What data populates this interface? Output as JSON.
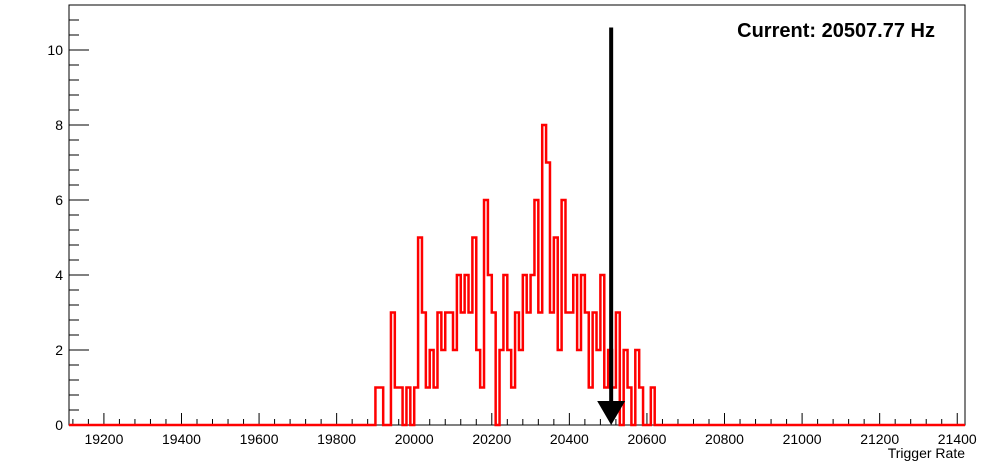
{
  "chart_data": {
    "type": "histogram",
    "title": "",
    "xlabel": "Trigger Rate",
    "ylabel": "",
    "xlim": [
      19110,
      21420
    ],
    "ylim": [
      0,
      11.2
    ],
    "x_ticks": [
      "19200",
      "19400",
      "19600",
      "19800",
      "20000",
      "20200",
      "20400",
      "20600",
      "20800",
      "21000",
      "21200",
      "21400"
    ],
    "y_ticks": [
      "0",
      "2",
      "4",
      "6",
      "8",
      "10"
    ],
    "grid": false,
    "legend": "none",
    "series_color": "#ff0000",
    "annotation": {
      "text": "Current: 20507.77 Hz",
      "arrow_x": 20507.77,
      "arrow_y_top": 10.6,
      "arrow_y_bottom": 0
    },
    "bins": [
      [
        19900,
        1
      ],
      [
        19910,
        1
      ],
      [
        19920,
        0
      ],
      [
        19930,
        0
      ],
      [
        19940,
        3
      ],
      [
        19950,
        1
      ],
      [
        19960,
        1
      ],
      [
        19970,
        0
      ],
      [
        19980,
        1
      ],
      [
        19990,
        0
      ],
      [
        20000,
        1
      ],
      [
        20010,
        5
      ],
      [
        20020,
        3
      ],
      [
        20030,
        1
      ],
      [
        20040,
        2
      ],
      [
        20050,
        1
      ],
      [
        20060,
        3
      ],
      [
        20070,
        2
      ],
      [
        20080,
        3
      ],
      [
        20090,
        3
      ],
      [
        20100,
        2
      ],
      [
        20110,
        4
      ],
      [
        20120,
        3
      ],
      [
        20130,
        4
      ],
      [
        20140,
        3
      ],
      [
        20150,
        5
      ],
      [
        20160,
        2
      ],
      [
        20170,
        1
      ],
      [
        20180,
        6
      ],
      [
        20190,
        4
      ],
      [
        20200,
        3
      ],
      [
        20210,
        0
      ],
      [
        20220,
        2
      ],
      [
        20230,
        4
      ],
      [
        20240,
        2
      ],
      [
        20250,
        1
      ],
      [
        20260,
        3
      ],
      [
        20270,
        2
      ],
      [
        20280,
        4
      ],
      [
        20290,
        3
      ],
      [
        20300,
        4
      ],
      [
        20310,
        6
      ],
      [
        20320,
        3
      ],
      [
        20330,
        8
      ],
      [
        20340,
        7
      ],
      [
        20350,
        3
      ],
      [
        20360,
        5
      ],
      [
        20370,
        2
      ],
      [
        20380,
        6
      ],
      [
        20390,
        3
      ],
      [
        20400,
        3
      ],
      [
        20410,
        4
      ],
      [
        20420,
        2
      ],
      [
        20430,
        4
      ],
      [
        20440,
        3
      ],
      [
        20450,
        1
      ],
      [
        20460,
        3
      ],
      [
        20470,
        2
      ],
      [
        20480,
        4
      ],
      [
        20490,
        1
      ],
      [
        20500,
        2
      ],
      [
        20510,
        1
      ],
      [
        20520,
        3
      ],
      [
        20530,
        0
      ],
      [
        20540,
        2
      ],
      [
        20550,
        1
      ],
      [
        20560,
        0
      ],
      [
        20570,
        2
      ],
      [
        20580,
        1
      ],
      [
        20590,
        0
      ],
      [
        20600,
        0
      ],
      [
        20610,
        1
      ],
      [
        20620,
        0
      ],
      [
        20630,
        0
      ],
      [
        20640,
        0
      ],
      [
        20650,
        0
      ]
    ]
  }
}
